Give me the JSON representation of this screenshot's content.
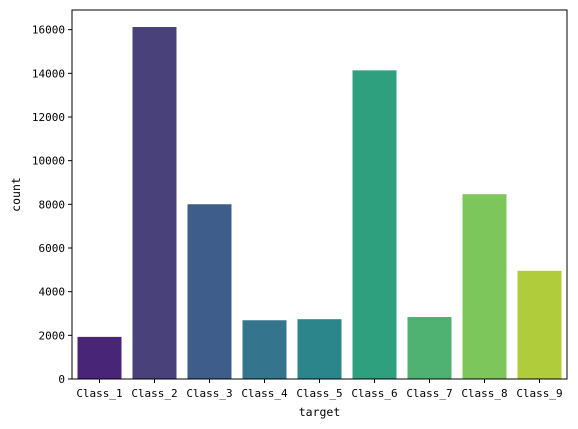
{
  "chart_data": {
    "type": "bar",
    "categories": [
      "Class_1",
      "Class_2",
      "Class_3",
      "Class_4",
      "Class_5",
      "Class_6",
      "Class_7",
      "Class_8",
      "Class_9"
    ],
    "values": [
      1929,
      16122,
      8004,
      2691,
      2739,
      14135,
      2839,
      8464,
      4955
    ],
    "colors": [
      "#482576",
      "#48417a",
      "#3e5d8a",
      "#34748d",
      "#2a868b",
      "#2fa07d",
      "#50b272",
      "#7dc65b",
      "#b0cc3a"
    ],
    "title": "",
    "xlabel": "target",
    "ylabel": "count",
    "ylim": [
      0,
      16900
    ],
    "yticks": [
      0,
      2000,
      4000,
      6000,
      8000,
      10000,
      12000,
      14000,
      16000
    ],
    "grid": false,
    "legend": "none"
  }
}
